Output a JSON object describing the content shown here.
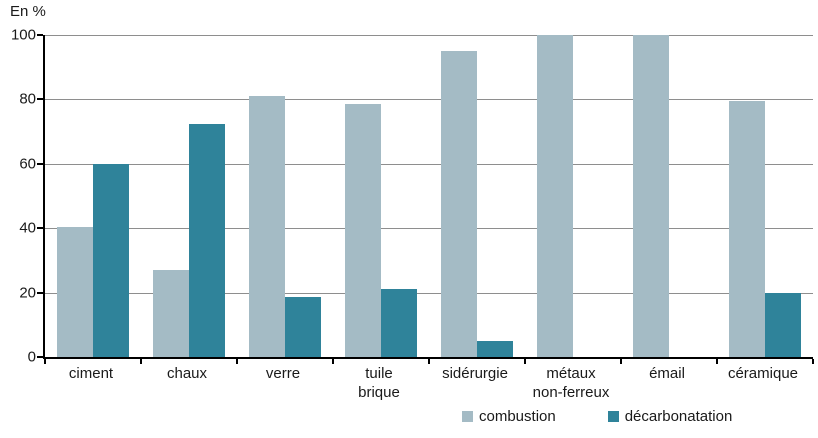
{
  "chart_data": {
    "type": "bar",
    "title": "",
    "ylabel": "En %",
    "xlabel": "",
    "ylim": [
      0,
      100
    ],
    "yticks": [
      0,
      20,
      40,
      60,
      80,
      100
    ],
    "grid": true,
    "legend_position": "bottom",
    "categories": [
      "ciment",
      "chaux",
      "verre",
      "tuile\nbrique",
      "sidérurgie",
      "métaux\nnon-ferreux",
      "émail",
      "céramique"
    ],
    "series": [
      {
        "name": "combustion",
        "color": "#a4bbc5",
        "values": [
          40.5,
          27,
          81,
          78.5,
          95,
          100,
          100,
          79.5
        ]
      },
      {
        "name": "décarbonatation",
        "color": "#2f839a",
        "values": [
          60,
          72.5,
          18.5,
          21,
          5,
          0,
          0,
          20
        ]
      }
    ],
    "axis_color": "#000000",
    "gridline_color": "#8e8e8e",
    "text_color": "#1a1a1a"
  }
}
